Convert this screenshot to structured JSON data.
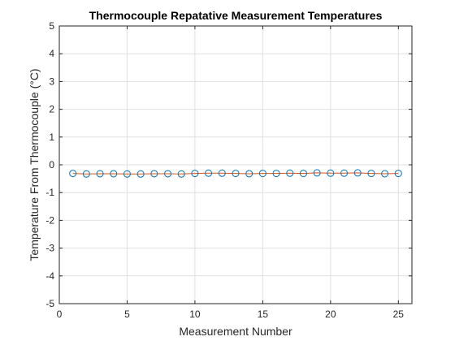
{
  "chart_data": {
    "type": "line",
    "title": "Thermocouple Repatative Measurement Temperatures",
    "xlabel": "Measurement Number",
    "ylabel": "Temperature From Thermocouple (°C)",
    "xlim": [
      0,
      26
    ],
    "ylim": [
      -5,
      5
    ],
    "xticks": [
      0,
      5,
      10,
      15,
      20,
      25
    ],
    "yticks": [
      -5,
      -4,
      -3,
      -2,
      -1,
      0,
      1,
      2,
      3,
      4,
      5
    ],
    "grid": true,
    "series": [
      {
        "marker": "circle",
        "line_color": "#D95319",
        "marker_color": "#0072BD",
        "x": [
          1,
          2,
          3,
          4,
          5,
          6,
          7,
          8,
          9,
          10,
          11,
          12,
          13,
          14,
          15,
          16,
          17,
          18,
          19,
          20,
          21,
          22,
          23,
          24,
          25
        ],
        "y": [
          -0.31,
          -0.33,
          -0.32,
          -0.32,
          -0.33,
          -0.33,
          -0.32,
          -0.32,
          -0.33,
          -0.31,
          -0.3,
          -0.3,
          -0.31,
          -0.32,
          -0.31,
          -0.31,
          -0.3,
          -0.31,
          -0.29,
          -0.3,
          -0.3,
          -0.29,
          -0.31,
          -0.32,
          -0.31
        ]
      }
    ]
  }
}
